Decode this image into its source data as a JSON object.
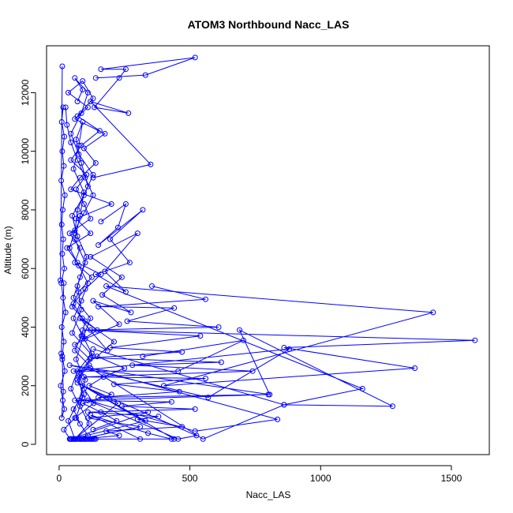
{
  "chart_data": {
    "type": "line",
    "title": "ATOM3 Northbound Nacc_LAS",
    "xlabel": "Nacc_LAS",
    "ylabel": "Altitude (m)",
    "xlim": [
      -48,
      1645
    ],
    "ylim": [
      -350,
      13600
    ],
    "xticks": [
      0,
      500,
      1000,
      1500
    ],
    "yticks": [
      0,
      2000,
      4000,
      6000,
      8000,
      10000,
      12000
    ],
    "grid": false,
    "series_color": "#0000ff",
    "marker": "open-circle",
    "series": [
      {
        "x": [
          42,
          18,
          60,
          132,
          95,
          75,
          118,
          60,
          145,
          88,
          55,
          100,
          160,
          70,
          30,
          120,
          65,
          200,
          45,
          80,
          140,
          95,
          175,
          60,
          110,
          35,
          90,
          130,
          70,
          155,
          85,
          45,
          105,
          65,
          95,
          120,
          40,
          80,
          60,
          125,
          75,
          50,
          100,
          85,
          60,
          115,
          70,
          95,
          55,
          80,
          110,
          65,
          90,
          75,
          130,
          50,
          85,
          70,
          100,
          60,
          80,
          95,
          55,
          75,
          90,
          65,
          85,
          110,
          70,
          60
        ],
        "y": [
          180,
          500,
          900,
          1400,
          1900,
          2400,
          2900,
          3400,
          3900,
          4300,
          4800,
          5300,
          5800,
          6200,
          6700,
          7200,
          7700,
          8200,
          8700,
          9100,
          9600,
          10100,
          10600,
          11100,
          11500,
          12000,
          12400,
          11800,
          11200,
          10700,
          10200,
          9700,
          9200,
          8700,
          8200,
          7700,
          7200,
          6700,
          6200,
          5700,
          5200,
          4700,
          4200,
          3700,
          3200,
          2700,
          2200,
          1700,
          1200,
          700,
          300,
          900,
          1600,
          2300,
          3000,
          3800,
          4600,
          5400,
          6200,
          7000,
          7800,
          8600,
          9400,
          10200,
          11000,
          10400,
          9600,
          8800,
          8000,
          7200
        ]
      },
      {
        "x": [
          25,
          30,
          45,
          70,
          100,
          130,
          95,
          60,
          40,
          75,
          110,
          85,
          55,
          90,
          125,
          70,
          45,
          80,
          115,
          60,
          35,
          75,
          100,
          65,
          90,
          120,
          55,
          80,
          105,
          70,
          50,
          95,
          130,
          75,
          45,
          85,
          110,
          60,
          90,
          70
        ],
        "y": [
          11500,
          10900,
          10300,
          9700,
          9100,
          8500,
          7900,
          7300,
          6700,
          6100,
          5500,
          4900,
          4300,
          3700,
          3100,
          2500,
          1900,
          1300,
          700,
          180,
          800,
          1500,
          2200,
          2900,
          3600,
          4300,
          5000,
          5700,
          6400,
          7100,
          7800,
          8500,
          9200,
          9900,
          10600,
          11300,
          12000,
          12500,
          12100,
          11700
        ]
      },
      {
        "x": [
          140,
          330,
          520,
          160,
          255,
          230,
          135,
          265,
          120,
          350,
          130
        ],
        "y": [
          12500,
          12600,
          13200,
          12800,
          12800,
          12500,
          11500,
          11300,
          11700,
          9550,
          9100
        ]
      },
      {
        "x": [
          120,
          1590,
          860,
          1360,
          400,
          1430,
          180,
          1160,
          860,
          1275,
          690,
          805,
          40,
          570,
          880,
          55,
          455,
          705,
          320
        ],
        "y": [
          3900,
          3550,
          3300,
          2600,
          2000,
          4500,
          5400,
          1900,
          1350,
          1300,
          3900,
          1700,
          2700,
          1600,
          3250,
          2500,
          2500,
          3550,
          3000
        ]
      },
      {
        "x": [
          355,
          560,
          150,
          440,
          260,
          610,
          90,
          540,
          195,
          470,
          120,
          620,
          280,
          740,
          95,
          560,
          210,
          460,
          150,
          800,
          60,
          430,
          240,
          520,
          110,
          380,
          300,
          470,
          180,
          230,
          80,
          310,
          110,
          340,
          45
        ],
        "y": [
          5400,
          4950,
          4700,
          4650,
          4200,
          4000,
          3900,
          3700,
          3300,
          3150,
          2950,
          2800,
          2700,
          2500,
          2300,
          2250,
          2050,
          1800,
          1600,
          1700,
          1500,
          1450,
          1300,
          1200,
          1100,
          950,
          850,
          600,
          450,
          300,
          180,
          600,
          900,
          1100,
          180
        ]
      },
      {
        "x": [
          130,
          860,
          550,
          120,
          835,
          520,
          110,
          455,
          525,
          90,
          440,
          310,
          120,
          340,
          430,
          50,
          330,
          70,
          225,
          60
        ],
        "y": [
          3250,
          1350,
          180,
          2600,
          850,
          450,
          1500,
          180,
          300,
          2000,
          180,
          180,
          1000,
          380,
          180,
          180,
          800,
          2100,
          1400,
          180
        ]
      },
      {
        "x": [
          160,
          255,
          225,
          150,
          320,
          195,
          270,
          140,
          255,
          175,
          300,
          120,
          240,
          165,
          275,
          130,
          230,
          100,
          185,
          80,
          210,
          145,
          250,
          170,
          115,
          200,
          90,
          160,
          220,
          130
        ],
        "y": [
          7600,
          8200,
          7400,
          6800,
          8000,
          7000,
          6200,
          5800,
          5200,
          5900,
          7200,
          6400,
          5700,
          5100,
          4500,
          4900,
          4100,
          3600,
          3200,
          4300,
          3500,
          3000,
          2600,
          2300,
          2000,
          1700,
          1400,
          1100,
          800,
          500
        ]
      },
      {
        "x": [
          15,
          10,
          20,
          12,
          18,
          8,
          22,
          14,
          10,
          16,
          12,
          20,
          8,
          15,
          25,
          10,
          18,
          12,
          22,
          6,
          14,
          20,
          10,
          16,
          12,
          8,
          18,
          5,
          12
        ],
        "y": [
          11500,
          11000,
          10500,
          10000,
          9500,
          9000,
          8500,
          8000,
          7500,
          7000,
          6500,
          6000,
          5500,
          5000,
          4500,
          4000,
          3500,
          3000,
          2500,
          2000,
          1500,
          1200,
          900,
          1800,
          2900,
          3100,
          5500,
          5600,
          12900
        ]
      },
      {
        "x": [
          60,
          75,
          90,
          110,
          130,
          50,
          65,
          85,
          100,
          120,
          140,
          45,
          70,
          95,
          115,
          135,
          55,
          80,
          105,
          125,
          40,
          60,
          85,
          100,
          120
        ],
        "y": [
          180,
          180,
          180,
          180,
          180,
          180,
          180,
          180,
          180,
          180,
          180,
          180,
          180,
          180,
          180,
          180,
          180,
          180,
          180,
          180,
          180,
          180,
          180,
          180,
          180
        ]
      }
    ]
  }
}
